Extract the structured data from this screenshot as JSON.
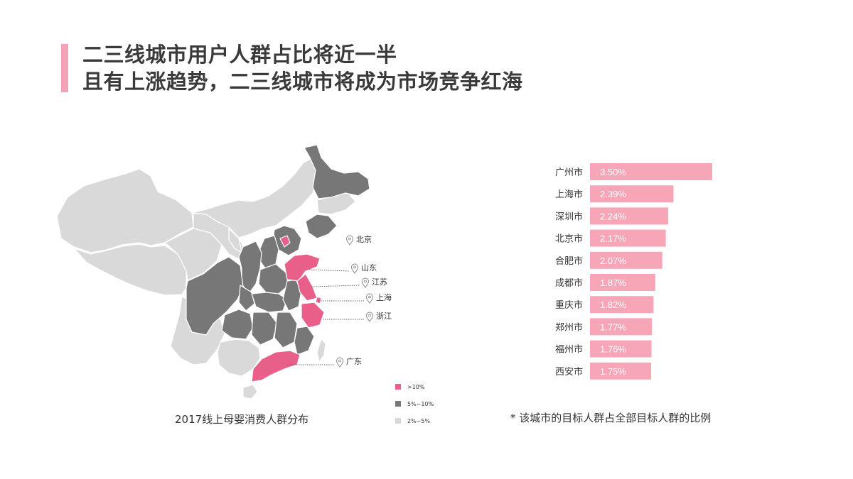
{
  "title": {
    "line1": "二三线城市用户人群占比将近一半",
    "line2": "且有上涨趋势，二三线城市将成为市场竞争红海"
  },
  "colors": {
    "accent": "#f2a3b8",
    "bar": "#f7a6b8",
    "high": "#e8608a",
    "mid": "#777777",
    "low": "#d9d9d9"
  },
  "map": {
    "caption": "2017线上母婴消费人群分布",
    "callouts": [
      "北京",
      "山东",
      "江苏",
      "上海",
      "浙江",
      "广东"
    ],
    "legend": [
      {
        "label": ">10%",
        "color": "#e8608a"
      },
      {
        "label": "5%~10%",
        "color": "#777777"
      },
      {
        "label": "2%~5%",
        "color": "#d9d9d9"
      }
    ]
  },
  "chart_data": {
    "type": "bar",
    "orientation": "horizontal",
    "categories": [
      "广州市",
      "上海市",
      "深圳市",
      "北京市",
      "合肥市",
      "成都市",
      "重庆市",
      "郑州市",
      "福州市",
      "西安市"
    ],
    "values": [
      3.5,
      2.39,
      2.24,
      2.17,
      2.07,
      1.87,
      1.82,
      1.77,
      1.76,
      1.75
    ],
    "value_labels": [
      "3.50%",
      "2.39%",
      "2.24%",
      "2.17%",
      "2.07%",
      "1.87%",
      "1.82%",
      "1.77%",
      "1.76%",
      "1.75%"
    ],
    "value_unit": "%",
    "grid": false,
    "legend": "none"
  },
  "footnote": "* 该城市的目标人群占全部目标人群的比例"
}
